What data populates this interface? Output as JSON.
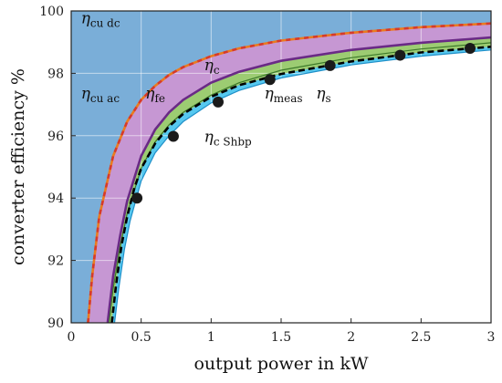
{
  "chart_data": {
    "type": "line",
    "xlabel": "output power in kW",
    "ylabel": "converter efficiency %",
    "xlim": [
      0,
      3
    ],
    "ylim": [
      90,
      100
    ],
    "xticks": [
      "0",
      "0.5",
      "1",
      "1.5",
      "2",
      "2.5",
      "3"
    ],
    "yticks": [
      "90",
      "92",
      "94",
      "96",
      "98",
      "100"
    ],
    "grid": true,
    "colors": {
      "background_band": "#7aaed8",
      "loss_band": "#c697d3",
      "green_band": "#9ccc72",
      "cyan_band": "#56c8ef",
      "eta_c": "#6a2a86",
      "eta_cu_dc": "#ea7b1f",
      "eta_cu_dc_dash": "#d63a2a",
      "eta_meas": "#000000"
    },
    "series": [
      {
        "name": "η cu ac",
        "style": "orange-red dashed boundary",
        "x": [
          0.12,
          0.15,
          0.2,
          0.3,
          0.4,
          0.5,
          0.6,
          0.7,
          0.8,
          1.0,
          1.2,
          1.5,
          2.0,
          2.5,
          3.0
        ],
        "y": [
          90.0,
          91.5,
          93.4,
          95.35,
          96.45,
          97.15,
          97.6,
          97.95,
          98.2,
          98.55,
          98.8,
          99.05,
          99.3,
          99.48,
          99.6
        ]
      },
      {
        "name": "η c",
        "style": "purple solid",
        "x": [
          0.26,
          0.3,
          0.35,
          0.4,
          0.5,
          0.6,
          0.7,
          0.8,
          1.0,
          1.2,
          1.5,
          2.0,
          2.5,
          3.0
        ],
        "y": [
          90.0,
          91.5,
          92.8,
          93.9,
          95.35,
          96.2,
          96.75,
          97.15,
          97.7,
          98.05,
          98.4,
          98.75,
          98.98,
          99.15
        ]
      },
      {
        "name": "η c Shbp",
        "style": "green band boundary",
        "x": [
          0.27,
          0.3,
          0.35,
          0.4,
          0.5,
          0.6,
          0.7,
          0.8,
          1.0,
          1.2,
          1.5,
          2.0,
          2.5,
          3.0
        ],
        "y": [
          90.0,
          91.1,
          92.45,
          93.5,
          94.95,
          95.8,
          96.35,
          96.75,
          97.3,
          97.7,
          98.1,
          98.5,
          98.78,
          98.98
        ]
      },
      {
        "name": "η meas",
        "style": "black dashed",
        "x": [
          0.29,
          0.32,
          0.36,
          0.4,
          0.45,
          0.5,
          0.6,
          0.7,
          0.8,
          1.0,
          1.2,
          1.5,
          2.0,
          2.5,
          3.0
        ],
        "y": [
          90.0,
          91.2,
          92.5,
          93.4,
          94.3,
          94.95,
          95.75,
          96.3,
          96.7,
          97.25,
          97.62,
          97.98,
          98.38,
          98.67,
          98.85
        ]
      },
      {
        "name": "η s",
        "style": "cyan band boundary",
        "x": [
          0.31,
          0.34,
          0.38,
          0.42,
          0.5,
          0.6,
          0.7,
          0.8,
          1.0,
          1.2,
          1.5,
          2.0,
          2.5,
          3.0
        ],
        "y": [
          90.0,
          91.1,
          92.35,
          93.25,
          94.55,
          95.45,
          96.0,
          96.45,
          97.05,
          97.45,
          97.85,
          98.27,
          98.55,
          98.75
        ]
      },
      {
        "name": "measured points",
        "style": "black circles",
        "x": [
          0.47,
          0.73,
          1.05,
          1.42,
          1.85,
          2.35,
          2.85
        ],
        "y": [
          94.0,
          95.98,
          97.08,
          97.8,
          98.25,
          98.58,
          98.8
        ]
      }
    ],
    "annotations": [
      {
        "base": "η",
        "sub": "cu dc",
        "x": 0.07,
        "y": 99.6
      },
      {
        "base": "η",
        "sub": "cu ac",
        "x": 0.07,
        "y": 97.2
      },
      {
        "base": "η",
        "sub": "fe",
        "x": 0.53,
        "y": 97.2
      },
      {
        "base": "η",
        "sub": "c",
        "x": 0.95,
        "y": 98.1
      },
      {
        "base": "η",
        "sub": "meas",
        "x": 1.38,
        "y": 97.2
      },
      {
        "base": "η",
        "sub": "s",
        "x": 1.75,
        "y": 97.2
      },
      {
        "base": "η",
        "sub": "c Shbp",
        "x": 0.95,
        "y": 95.8
      }
    ]
  }
}
